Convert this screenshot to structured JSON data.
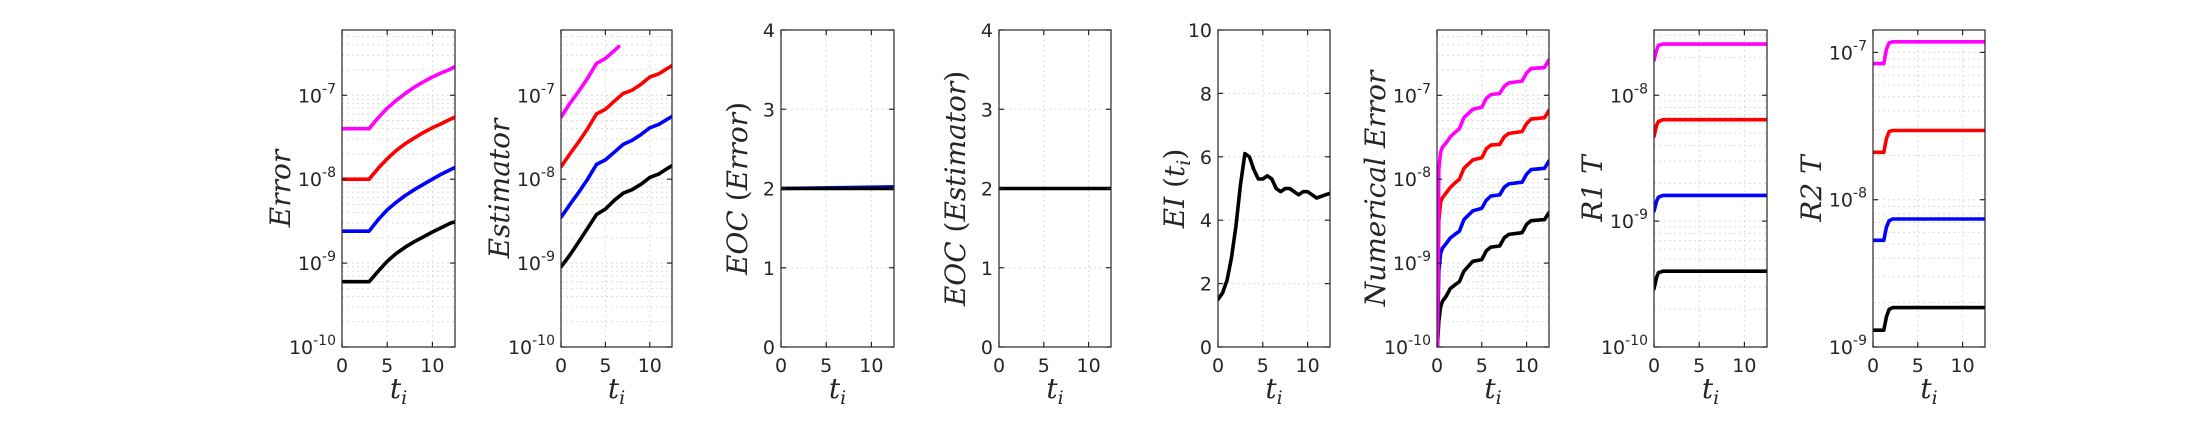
{
  "chart_data": [
    {
      "type": "line",
      "ylabel": "Error",
      "xlabel": "t_i",
      "xlabel_main": "t",
      "xlabel_sub": "i",
      "yscale": "log",
      "xlim": [
        0,
        12.5
      ],
      "ylim": [
        1e-10,
        6e-07
      ],
      "xticks": [
        "0",
        "5",
        "10"
      ],
      "yticks": [
        {
          "value": 1e-10,
          "mant": "10",
          "exp": "-10"
        },
        {
          "value": 1e-09,
          "mant": "10",
          "exp": "-9"
        },
        {
          "value": 1e-08,
          "mant": "10",
          "exp": "-8"
        },
        {
          "value": 1e-07,
          "mant": "10",
          "exp": "-7"
        }
      ],
      "grid": true,
      "series": [
        {
          "color": "#000000",
          "x": [
            0,
            1,
            2,
            3,
            4,
            5,
            6,
            7,
            8,
            9,
            10,
            11,
            12,
            12.5
          ],
          "y": [
            6e-10,
            6e-10,
            6e-10,
            6e-10,
            8e-10,
            1.05e-09,
            1.3e-09,
            1.55e-09,
            1.8e-09,
            2.05e-09,
            2.35e-09,
            2.65e-09,
            3e-09,
            3.1e-09
          ]
        },
        {
          "color": "#0000ff",
          "x": [
            0,
            1,
            2,
            3,
            4,
            5,
            6,
            7,
            8,
            9,
            10,
            11,
            12,
            12.5
          ],
          "y": [
            2.4e-09,
            2.4e-09,
            2.4e-09,
            2.4e-09,
            3.3e-09,
            4.3e-09,
            5.3e-09,
            6.4e-09,
            7.5e-09,
            8.7e-09,
            1e-08,
            1.15e-08,
            1.3e-08,
            1.38e-08
          ]
        },
        {
          "color": "#ff0000",
          "x": [
            0,
            1,
            2,
            3,
            4,
            5,
            6,
            7,
            8,
            9,
            10,
            11,
            12,
            12.5
          ],
          "y": [
            1e-08,
            1e-08,
            1e-08,
            1e-08,
            1.35e-08,
            1.75e-08,
            2.2e-08,
            2.65e-08,
            3.1e-08,
            3.6e-08,
            4.1e-08,
            4.6e-08,
            5.2e-08,
            5.5e-08
          ]
        },
        {
          "color": "#ff00ff",
          "x": [
            0,
            1,
            2,
            3,
            4,
            5,
            6,
            7,
            8,
            9,
            10,
            11,
            12,
            12.5
          ],
          "y": [
            4e-08,
            4e-08,
            4e-08,
            4e-08,
            5.4e-08,
            7e-08,
            8.7e-08,
            1.05e-07,
            1.25e-07,
            1.45e-07,
            1.65e-07,
            1.85e-07,
            2.05e-07,
            2.2e-07
          ]
        }
      ]
    },
    {
      "type": "line",
      "ylabel": "Estimator",
      "xlabel": "t_i",
      "xlabel_main": "t",
      "xlabel_sub": "i",
      "yscale": "log",
      "xlim": [
        0,
        12.5
      ],
      "ylim": [
        1e-10,
        6e-07
      ],
      "xticks": [
        "0",
        "5",
        "10"
      ],
      "yticks": [
        {
          "value": 1e-10,
          "mant": "10",
          "exp": "-10"
        },
        {
          "value": 1e-09,
          "mant": "10",
          "exp": "-9"
        },
        {
          "value": 1e-08,
          "mant": "10",
          "exp": "-8"
        },
        {
          "value": 1e-07,
          "mant": "10",
          "exp": "-7"
        }
      ],
      "grid": true,
      "series": [
        {
          "color": "#000000",
          "x": [
            0,
            1,
            2,
            3,
            4,
            5,
            6,
            7,
            8,
            9,
            10,
            11,
            12,
            12.5
          ],
          "y": [
            9e-10,
            1.25e-09,
            1.8e-09,
            2.6e-09,
            3.8e-09,
            4.4e-09,
            5.6e-09,
            6.8e-09,
            7.5e-09,
            8.7e-09,
            1.05e-08,
            1.15e-08,
            1.35e-08,
            1.45e-08
          ]
        },
        {
          "color": "#0000ff",
          "x": [
            0,
            1,
            2,
            3,
            4,
            5,
            6,
            7,
            8,
            9,
            10,
            11,
            12,
            12.5
          ],
          "y": [
            3.5e-09,
            5e-09,
            7e-09,
            1e-08,
            1.5e-08,
            1.7e-08,
            2.1e-08,
            2.6e-08,
            2.9e-08,
            3.4e-08,
            4.1e-08,
            4.5e-08,
            5.2e-08,
            5.6e-08
          ]
        },
        {
          "color": "#ff0000",
          "x": [
            0,
            1,
            2,
            3,
            4,
            5,
            6,
            7,
            8,
            9,
            10,
            11,
            12,
            12.5
          ],
          "y": [
            1.4e-08,
            2e-08,
            2.8e-08,
            4e-08,
            6e-08,
            6.8e-08,
            8.5e-08,
            1.05e-07,
            1.15e-07,
            1.35e-07,
            1.65e-07,
            1.8e-07,
            2.1e-07,
            2.25e-07
          ]
        },
        {
          "color": "#ff00ff",
          "x": [
            0,
            1,
            2,
            3,
            4,
            5,
            6,
            6.5
          ],
          "y": [
            5.5e-08,
            8e-08,
            1.12e-07,
            1.6e-07,
            2.4e-07,
            2.75e-07,
            3.4e-07,
            3.8e-07
          ]
        }
      ]
    },
    {
      "type": "line",
      "ylabel": "EOC (Error)",
      "xlabel": "t_i",
      "xlabel_main": "t",
      "xlabel_sub": "i",
      "yscale": "linear",
      "xlim": [
        0,
        12.5
      ],
      "ylim": [
        0,
        4
      ],
      "xticks": [
        "0",
        "5",
        "10"
      ],
      "yticks": [
        {
          "value": 0,
          "label": "0"
        },
        {
          "value": 1,
          "label": "1"
        },
        {
          "value": 2,
          "label": "2"
        },
        {
          "value": 3,
          "label": "3"
        },
        {
          "value": 4,
          "label": "4"
        }
      ],
      "grid": true,
      "series": [
        {
          "color": "#0000ff",
          "x": [
            0,
            12.5
          ],
          "y": [
            2.0,
            2.02
          ]
        },
        {
          "color": "#000000",
          "x": [
            0,
            12.5
          ],
          "y": [
            2.0,
            2.0
          ]
        }
      ]
    },
    {
      "type": "line",
      "ylabel": "EOC (Estimator)",
      "xlabel": "t_i",
      "xlabel_main": "t",
      "xlabel_sub": "i",
      "yscale": "linear",
      "xlim": [
        0,
        12.5
      ],
      "ylim": [
        0,
        4
      ],
      "xticks": [
        "0",
        "5",
        "10"
      ],
      "yticks": [
        {
          "value": 0,
          "label": "0"
        },
        {
          "value": 1,
          "label": "1"
        },
        {
          "value": 2,
          "label": "2"
        },
        {
          "value": 3,
          "label": "3"
        },
        {
          "value": 4,
          "label": "4"
        }
      ],
      "grid": true,
      "series": [
        {
          "color": "#000000",
          "x": [
            0,
            12.5
          ],
          "y": [
            2.0,
            2.0
          ]
        }
      ]
    },
    {
      "type": "line",
      "ylabel": "EI (t_i)",
      "xlabel": "t_i",
      "xlabel_main": "t",
      "xlabel_sub": "i",
      "yscale": "linear",
      "xlim": [
        0,
        12.5
      ],
      "ylim": [
        0,
        10
      ],
      "xticks": [
        "0",
        "5",
        "10"
      ],
      "yticks": [
        {
          "value": 0,
          "label": "0"
        },
        {
          "value": 2,
          "label": "2"
        },
        {
          "value": 4,
          "label": "4"
        },
        {
          "value": 6,
          "label": "6"
        },
        {
          "value": 8,
          "label": "8"
        },
        {
          "value": 10,
          "label": "10"
        }
      ],
      "grid": true,
      "series": [
        {
          "color": "#000000",
          "x": [
            0,
            0.5,
            1,
            1.5,
            2,
            2.5,
            3,
            3.5,
            4,
            4.5,
            5,
            5.5,
            6,
            6.5,
            7,
            7.5,
            8,
            8.5,
            9,
            9.5,
            10,
            10.5,
            11,
            11.5,
            12,
            12.5
          ],
          "y": [
            1.5,
            1.7,
            2.1,
            2.8,
            3.8,
            5.1,
            6.1,
            6.0,
            5.6,
            5.3,
            5.3,
            5.4,
            5.3,
            5.0,
            4.9,
            5.0,
            5.0,
            4.9,
            4.8,
            4.9,
            4.9,
            4.8,
            4.7,
            4.75,
            4.8,
            4.85
          ]
        }
      ]
    },
    {
      "type": "line",
      "ylabel": "Numerical Error",
      "xlabel": "t_i",
      "xlabel_main": "t",
      "xlabel_sub": "i",
      "yscale": "log",
      "xlim": [
        0,
        12.5
      ],
      "ylim": [
        1e-10,
        6e-07
      ],
      "xticks": [
        "0",
        "5",
        "10"
      ],
      "yticks": [
        {
          "value": 1e-10,
          "mant": "10",
          "exp": "-10"
        },
        {
          "value": 1e-09,
          "mant": "10",
          "exp": "-9"
        },
        {
          "value": 1e-08,
          "mant": "10",
          "exp": "-8"
        },
        {
          "value": 1e-07,
          "mant": "10",
          "exp": "-7"
        }
      ],
      "grid": true,
      "series": [
        {
          "color": "#000000",
          "x": [
            0.05,
            0.2,
            0.4,
            0.6,
            1.0,
            1.5,
            2.0,
            2.5,
            3.0,
            4.0,
            5.0,
            5.5,
            6.0,
            7.0,
            7.5,
            8.0,
            9.5,
            10.0,
            10.5,
            12.0,
            12.5
          ],
          "y": [
            1e-10,
            2e-10,
            3e-10,
            3.5e-10,
            4e-10,
            5e-10,
            5.5e-10,
            6e-10,
            8e-10,
            1.05e-09,
            1.1e-09,
            1.4e-09,
            1.55e-09,
            1.6e-09,
            2e-09,
            2.2e-09,
            2.3e-09,
            2.9e-09,
            3.2e-09,
            3.3e-09,
            4e-09
          ]
        },
        {
          "color": "#0000ff",
          "x": [
            0.05,
            0.2,
            0.4,
            0.6,
            1.0,
            1.5,
            2.0,
            2.5,
            3.0,
            4.0,
            5.0,
            5.5,
            6.0,
            7.0,
            7.5,
            8.0,
            9.5,
            10.0,
            10.5,
            12.0,
            12.5
          ],
          "y": [
            1e-10,
            8e-10,
            1.3e-09,
            1.5e-09,
            1.7e-09,
            2e-09,
            2.2e-09,
            2.4e-09,
            3.3e-09,
            4.2e-09,
            4.5e-09,
            5.6e-09,
            6.3e-09,
            6.5e-09,
            8e-09,
            8.8e-09,
            9.2e-09,
            1.15e-08,
            1.3e-08,
            1.35e-08,
            1.65e-08
          ]
        },
        {
          "color": "#ff0000",
          "x": [
            0.05,
            0.2,
            0.4,
            0.6,
            1.0,
            1.5,
            2.0,
            2.5,
            3.0,
            4.0,
            5.0,
            5.5,
            6.0,
            7.0,
            7.5,
            8.0,
            9.5,
            10.0,
            10.5,
            12.0,
            12.5
          ],
          "y": [
            1e-10,
            3.2e-09,
            5.3e-09,
            6e-09,
            6.8e-09,
            8e-09,
            9e-09,
            1e-08,
            1.35e-08,
            1.7e-08,
            1.8e-08,
            2.3e-08,
            2.55e-08,
            2.6e-08,
            3.2e-08,
            3.5e-08,
            3.7e-08,
            4.6e-08,
            5.2e-08,
            5.4e-08,
            6.6e-08
          ]
        },
        {
          "color": "#ff00ff",
          "x": [
            0.05,
            0.2,
            0.4,
            0.6,
            1.0,
            1.5,
            2.0,
            2.5,
            3.0,
            4.0,
            5.0,
            5.5,
            6.0,
            7.0,
            7.5,
            8.0,
            9.5,
            10.0,
            10.5,
            12.0,
            12.5
          ],
          "y": [
            1e-10,
            1.3e-08,
            2.1e-08,
            2.4e-08,
            2.7e-08,
            3.2e-08,
            3.6e-08,
            4e-08,
            5.4e-08,
            6.8e-08,
            7.2e-08,
            9.2e-08,
            1.02e-07,
            1.05e-07,
            1.28e-07,
            1.4e-07,
            1.48e-07,
            1.85e-07,
            2.08e-07,
            2.15e-07,
            2.65e-07
          ]
        }
      ]
    },
    {
      "type": "line",
      "ylabel": "R1T",
      "ylabel_main": "R1",
      "ylabel_tail": "T",
      "xlabel": "t_i",
      "xlabel_main": "t",
      "xlabel_sub": "i",
      "yscale": "log",
      "xlim": [
        0,
        12.5
      ],
      "ylim": [
        1e-10,
        3.3e-08
      ],
      "xticks": [
        "0",
        "5",
        "10"
      ],
      "yticks": [
        {
          "value": 1e-10,
          "mant": "10",
          "exp": "-10"
        },
        {
          "value": 1e-09,
          "mant": "10",
          "exp": "-9"
        },
        {
          "value": 1e-08,
          "mant": "10",
          "exp": "-8"
        }
      ],
      "grid": true,
      "series": [
        {
          "color": "#000000",
          "x": [
            0,
            0.3,
            0.5,
            1,
            12.5
          ],
          "y": [
            2.9e-10,
            3.6e-10,
            3.9e-10,
            4e-10,
            4e-10
          ]
        },
        {
          "color": "#0000ff",
          "x": [
            0,
            0.3,
            0.5,
            1,
            12.5
          ],
          "y": [
            1.2e-09,
            1.45e-09,
            1.55e-09,
            1.6e-09,
            1.6e-09
          ]
        },
        {
          "color": "#ff0000",
          "x": [
            0,
            0.3,
            0.5,
            1,
            12.5
          ],
          "y": [
            4.7e-09,
            5.8e-09,
            6.2e-09,
            6.4e-09,
            6.4e-09
          ]
        },
        {
          "color": "#ff00ff",
          "x": [
            0,
            0.3,
            0.5,
            1,
            12.5
          ],
          "y": [
            1.9e-08,
            2.3e-08,
            2.5e-08,
            2.55e-08,
            2.55e-08
          ]
        }
      ]
    },
    {
      "type": "line",
      "ylabel": "R2T",
      "ylabel_main": "R2",
      "ylabel_tail": "T",
      "xlabel": "t_i",
      "xlabel_main": "t",
      "xlabel_sub": "i",
      "yscale": "log",
      "xlim": [
        0,
        12.5
      ],
      "ylim": [
        1e-09,
        1.42e-07
      ],
      "xticks": [
        "0",
        "5",
        "10"
      ],
      "yticks": [
        {
          "value": 1e-09,
          "mant": "10",
          "exp": "-9"
        },
        {
          "value": 1e-08,
          "mant": "10",
          "exp": "-8"
        },
        {
          "value": 1e-07,
          "mant": "10",
          "exp": "-7"
        }
      ],
      "grid": true,
      "series": [
        {
          "color": "#000000",
          "x": [
            0,
            1.2,
            1.5,
            1.8,
            2.2,
            12.5
          ],
          "y": [
            1.3e-09,
            1.3e-09,
            1.6e-09,
            1.8e-09,
            1.85e-09,
            1.85e-09
          ]
        },
        {
          "color": "#0000ff",
          "x": [
            0,
            1.2,
            1.5,
            1.8,
            2.2,
            12.5
          ],
          "y": [
            5.3e-09,
            5.3e-09,
            6.5e-09,
            7.2e-09,
            7.4e-09,
            7.4e-09
          ]
        },
        {
          "color": "#ff0000",
          "x": [
            0,
            1.2,
            1.5,
            1.8,
            2.2,
            12.5
          ],
          "y": [
            2.1e-08,
            2.1e-08,
            2.6e-08,
            2.9e-08,
            2.95e-08,
            2.95e-08
          ]
        },
        {
          "color": "#ff00ff",
          "x": [
            0,
            1.2,
            1.5,
            1.8,
            2.2,
            12.5
          ],
          "y": [
            8.4e-08,
            8.4e-08,
            1.05e-07,
            1.16e-07,
            1.18e-07,
            1.18e-07
          ]
        }
      ]
    }
  ]
}
